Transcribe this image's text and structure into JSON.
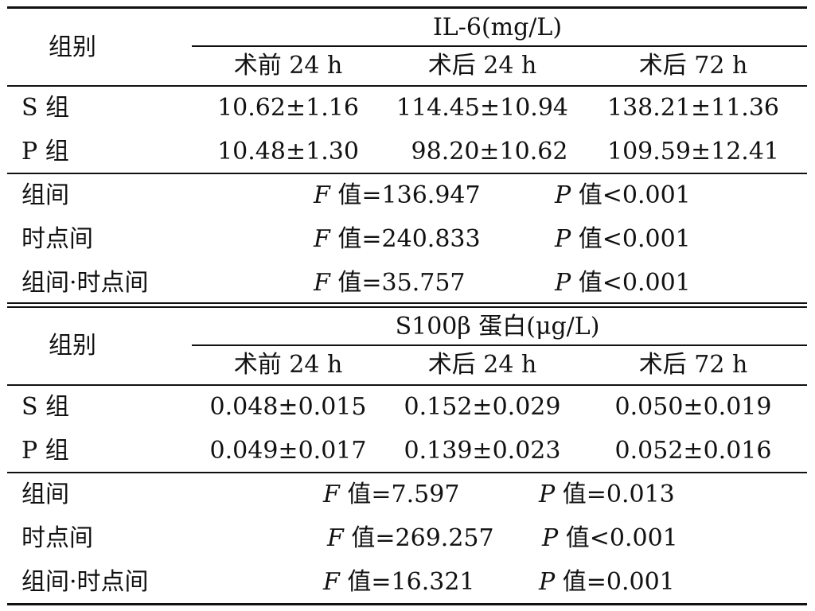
{
  "sections": [
    {
      "group_header": "组别",
      "measure_header": "IL-6(mg/L)",
      "columns": [
        "术前 24 h",
        "术后 24 h",
        "术后 72 h"
      ],
      "rows": [
        {
          "label": "S 组",
          "values": [
            "10.62±1.16",
            "114.45±10.94",
            "138.21±11.36"
          ]
        },
        {
          "label": "P 组",
          "values": [
            "10.48±1.30",
            "98.20±10.62",
            "109.59±12.41"
          ]
        }
      ],
      "stats": [
        {
          "label": "组间",
          "f": "136.947",
          "p_op": "<",
          "p": "0.001"
        },
        {
          "label": "时点间",
          "f": "240.833",
          "p_op": "<",
          "p": "0.001"
        },
        {
          "label": "组间·时点间",
          "f": "35.757",
          "p_op": "<",
          "p": "0.001"
        }
      ]
    },
    {
      "group_header": "组别",
      "measure_header": "S100β 蛋白(μg/L)",
      "columns": [
        "术前 24 h",
        "术后 24 h",
        "术后 72 h"
      ],
      "rows": [
        {
          "label": "S 组",
          "values": [
            "0.048±0.015",
            "0.152±0.029",
            "0.050±0.019"
          ]
        },
        {
          "label": "P 组",
          "values": [
            "0.049±0.017",
            "0.139±0.023",
            "0.052±0.016"
          ]
        }
      ],
      "stats": [
        {
          "label": "组间",
          "f": "7.597",
          "p_op": "=",
          "p": "0.013"
        },
        {
          "label": "时点间",
          "f": "269.257",
          "p_op": "<",
          "p": "0.001"
        },
        {
          "label": "组间·时点间",
          "f": "16.321",
          "p_op": "=",
          "p": "0.001"
        }
      ]
    }
  ],
  "stat_symbols": {
    "f": "F",
    "p": "P",
    "value_word": "值",
    "eq": "="
  }
}
